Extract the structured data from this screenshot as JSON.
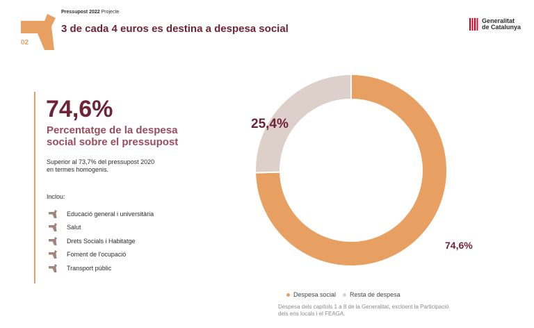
{
  "header": {
    "slide_number": "02",
    "doc_label_bold": "Pressupost 2022",
    "doc_label_rest": " Projecte",
    "title": "3 de cada 4 euros es destina a despesa social",
    "logo_line1": "Generalitat",
    "logo_line2": "de Catalunya"
  },
  "colors": {
    "accent": "#e8a062",
    "maroon": "#6e2337",
    "rest": "#ddcfc9",
    "bullet": "#a1857c"
  },
  "summary": {
    "big_value": "74,6%",
    "subtitle": "Percentatge de la despesa social sobre el pressupost",
    "note": "Superior al 73,7% del pressupost 2020 en termes homogenis.",
    "includes_label": "Inclou:",
    "items": [
      "Educació general i universitària",
      "Salut",
      "Drets Socials i Habitatge",
      "Foment de l'ocupació",
      "Transport públic"
    ]
  },
  "chart_data": {
    "type": "pie",
    "donut": true,
    "categories": [
      "Despesa social",
      "Resta de despesa"
    ],
    "values": [
      74.6,
      25.4
    ],
    "data_labels": [
      "74,6%",
      "25,4%"
    ],
    "legend_position": "bottom",
    "footnote": "Despesa dels capítols 1 a 8 de la Generalitat, excloent la Participació dels ens locals i el FEAGA."
  }
}
